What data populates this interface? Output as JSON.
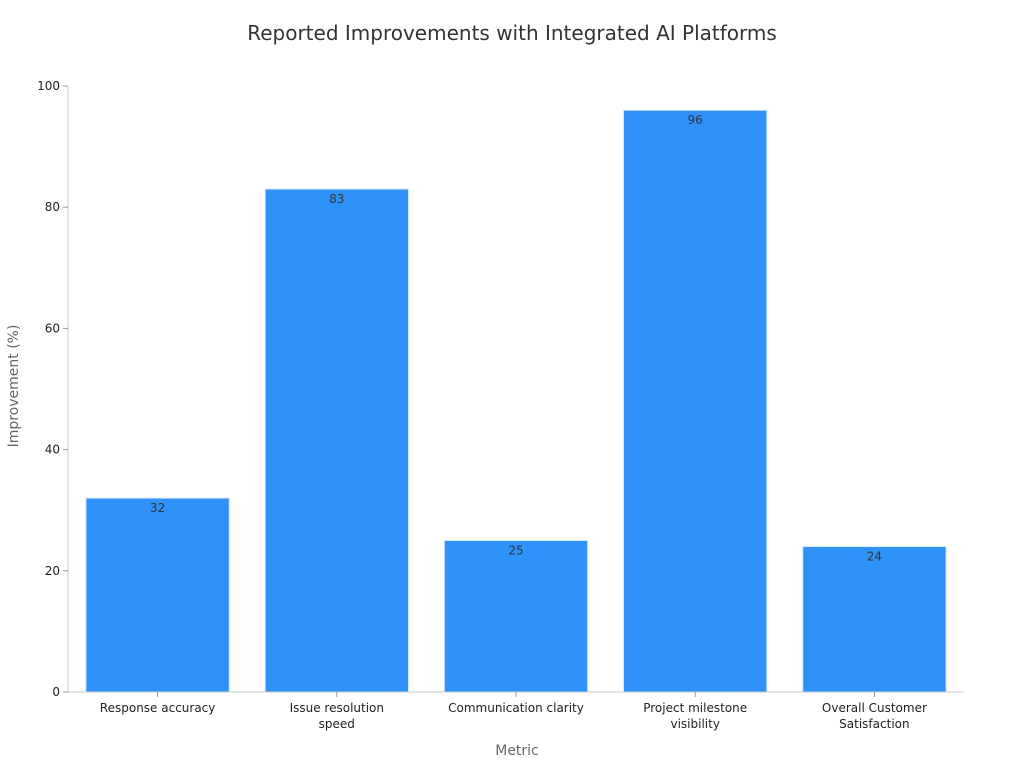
{
  "chart_data": {
    "type": "bar",
    "title": "Reported Improvements with Integrated AI Platforms",
    "xlabel": "Metric",
    "ylabel": "Improvement (%)",
    "categories": [
      [
        "Response accuracy"
      ],
      [
        "Issue resolution",
        "speed"
      ],
      [
        "Communication clarity"
      ],
      [
        "Project milestone",
        "visibility"
      ],
      [
        "Overall Customer",
        "Satisfaction"
      ]
    ],
    "values": [
      32,
      83,
      25,
      96,
      24
    ],
    "ylim": [
      0,
      100
    ],
    "yticks": [
      0,
      20,
      40,
      60,
      80,
      100
    ],
    "grid": false,
    "bar_color": "#2F92F8",
    "bar_edge_color": "#D6E8FC"
  }
}
